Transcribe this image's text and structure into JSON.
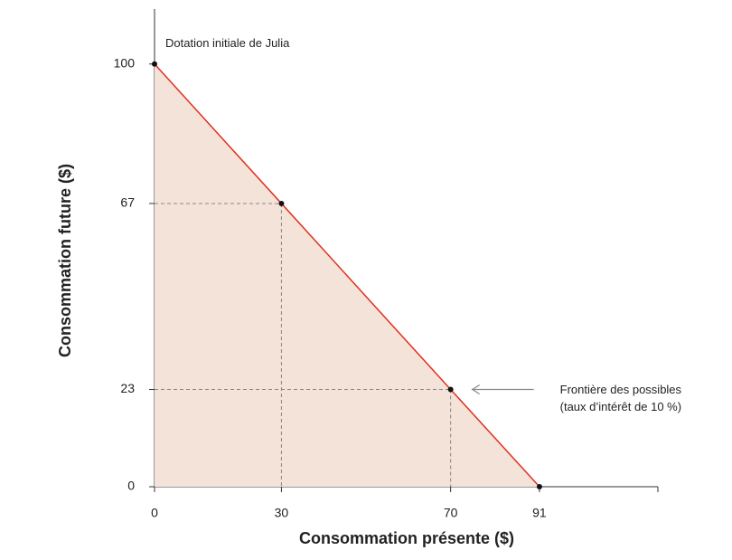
{
  "chart_data": {
    "type": "line",
    "x_label": "Consommation présente ($)",
    "y_label": "Consommation future ($)",
    "x": [
      0,
      30,
      70,
      91
    ],
    "series": [
      {
        "color": "#e0301e",
        "values": [
          100,
          67,
          23,
          0
        ]
      }
    ],
    "area_color": "#f4e3d9",
    "xlim": [
      0,
      119
    ],
    "ylim": [
      0,
      113
    ],
    "xticks": [
      0,
      30,
      70,
      91
    ],
    "yticks": [
      0,
      23,
      67,
      100
    ],
    "annotations": [
      {
        "point": 0,
        "lines": [
          "Dotation initiale de Julia"
        ]
      },
      {
        "point": 2,
        "lines": [
          "Frontière des possibles",
          "(taux d’intérêt de 10 %)"
        ]
      }
    ]
  }
}
